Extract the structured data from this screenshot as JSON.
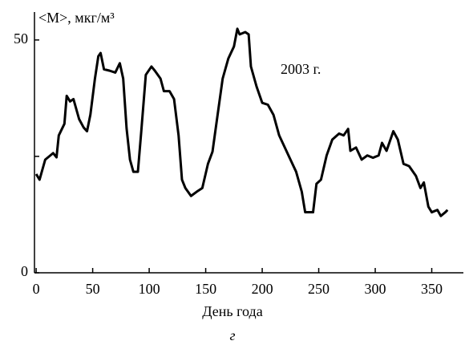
{
  "chart_data": {
    "type": "line",
    "y_label": "<M>, мкг/м³",
    "x_label": "День года",
    "annotation": "2003 г.",
    "caption": "г",
    "x": [
      0,
      3,
      8,
      15,
      18,
      20,
      25,
      27,
      30,
      33,
      38,
      42,
      45,
      48,
      52,
      55,
      57,
      60,
      65,
      70,
      74,
      77,
      80,
      83,
      86,
      90,
      93,
      97,
      102,
      105,
      110,
      113,
      118,
      122,
      126,
      129,
      132,
      137,
      142,
      147,
      152,
      156,
      160,
      165,
      170,
      175,
      178,
      180,
      185,
      188,
      190,
      195,
      200,
      205,
      210,
      215,
      220,
      225,
      230,
      235,
      238,
      245,
      248,
      252,
      257,
      262,
      268,
      272,
      276,
      278,
      283,
      288,
      293,
      298,
      303,
      306,
      310,
      316,
      320,
      325,
      330,
      336,
      340,
      343,
      347,
      350,
      355,
      358,
      362,
      364
    ],
    "series": [
      {
        "color": "#000000",
        "values": [
          21.2,
          20,
          24.3,
          25.7,
          24.8,
          29.5,
          32,
          38,
          36.8,
          37.3,
          33,
          31.2,
          30.4,
          34,
          41.7,
          46.5,
          47.2,
          43.7,
          43.4,
          43,
          45,
          41.7,
          31,
          24.3,
          21.7,
          21.7,
          30.4,
          42.5,
          44.3,
          43.4,
          41.7,
          39,
          39,
          37.3,
          29.5,
          20,
          18.2,
          16.5,
          17.4,
          18.2,
          23.4,
          26,
          33,
          41.7,
          46,
          48.6,
          52.4,
          51.2,
          51.7,
          51.2,
          44.3,
          40,
          36.5,
          36.1,
          33.9,
          29.5,
          26.9,
          24.3,
          21.7,
          17.4,
          13,
          13,
          19.1,
          20,
          25.2,
          28.6,
          29.9,
          29.5,
          30.9,
          26.2,
          26.9,
          24.3,
          25.2,
          24.7,
          25.2,
          27.9,
          26.2,
          30.4,
          28.6,
          23.4,
          22.9,
          20.8,
          18.2,
          19.4,
          14.2,
          13,
          13.5,
          12.2,
          13,
          13.5
        ]
      }
    ],
    "xlim": [
      -1.5,
      378
    ],
    "ylim": [
      0,
      56
    ],
    "xticks": [
      0,
      50,
      100,
      150,
      200,
      250,
      300,
      350
    ],
    "yticks": [
      0,
      50
    ],
    "minor_yticks": [
      25
    ]
  }
}
